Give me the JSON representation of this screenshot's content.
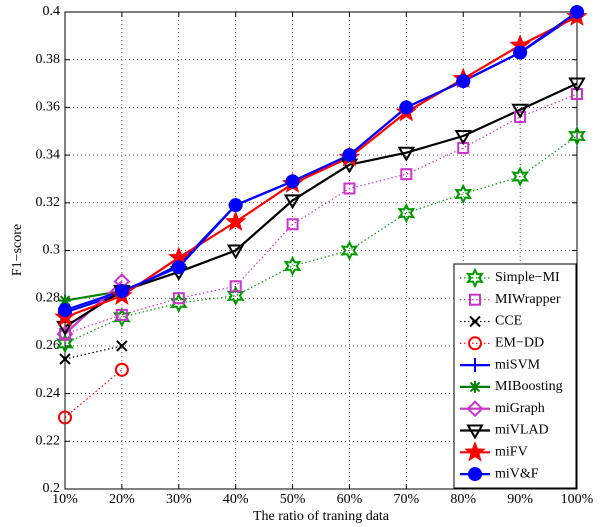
{
  "chart_data": {
    "type": "line",
    "x_label": "The ratio of traning data",
    "y_label": "F1−score",
    "categories": [
      "10%",
      "20%",
      "30%",
      "40%",
      "50%",
      "60%",
      "70%",
      "80%",
      "90%",
      "100%"
    ],
    "ylim": [
      0.2,
      0.4
    ],
    "yticks": [
      0.2,
      0.22,
      0.24,
      0.26,
      0.28,
      0.3,
      0.32,
      0.34,
      0.36,
      0.38,
      0.4
    ],
    "grid": true,
    "legend": "lower right",
    "series": [
      {
        "name": "Simple−MI",
        "color": "#009900",
        "marker": "hexagram",
        "line_style": "dotted",
        "filled": false,
        "values": [
          0.261,
          0.272,
          0.278,
          0.281,
          0.2935,
          0.3,
          0.3157,
          0.3237,
          0.331,
          0.348
        ]
      },
      {
        "name": "MIWrapper",
        "color": "#cc33cc",
        "marker": "square",
        "line_style": "dotted",
        "filled": false,
        "values": [
          0.265,
          0.273,
          0.28,
          0.285,
          0.311,
          0.326,
          0.332,
          0.343,
          0.356,
          0.3656
        ]
      },
      {
        "name": "CCE",
        "color": "#000000",
        "marker": "x",
        "line_style": "dotted",
        "filled": false,
        "values": [
          0.2545,
          0.26,
          null,
          null,
          null,
          null,
          null,
          null,
          null,
          null
        ]
      },
      {
        "name": "EM−DD",
        "color": "#ff0000",
        "marker": "circle",
        "line_style": "dotted",
        "filled": false,
        "values": [
          0.23,
          0.25,
          null,
          null,
          null,
          null,
          null,
          null,
          null,
          null
        ]
      },
      {
        "name": "miSVM",
        "color": "#0000ff",
        "marker": "plus",
        "line_style": "solid",
        "filled": false,
        "values": [
          0.274,
          0.282,
          0.294,
          0.319,
          0.329,
          0.34,
          0.36,
          0.371,
          0.383,
          0.399
        ]
      },
      {
        "name": "MIBoosting",
        "color": "#008000",
        "marker": "asterisk",
        "line_style": "solid",
        "filled": false,
        "values": [
          0.279,
          0.283,
          null,
          null,
          null,
          null,
          null,
          null,
          null,
          null
        ]
      },
      {
        "name": "miGraph",
        "color": "#cc33cc",
        "marker": "diamond",
        "line_style": "solid",
        "filled": false,
        "values": [
          0.265,
          0.287,
          null,
          null,
          null,
          null,
          null,
          null,
          null,
          null
        ]
      },
      {
        "name": "miVLAD",
        "color": "#000000",
        "marker": "triangle-down",
        "line_style": "solid",
        "filled": false,
        "values": [
          0.268,
          0.283,
          0.291,
          0.3,
          0.321,
          0.336,
          0.341,
          0.348,
          0.359,
          0.37
        ]
      },
      {
        "name": "miFV",
        "color": "#ff0000",
        "marker": "pentagram",
        "line_style": "solid",
        "filled": true,
        "values": [
          0.272,
          0.281,
          0.297,
          0.312,
          0.328,
          0.339,
          0.358,
          0.372,
          0.386,
          0.398
        ]
      },
      {
        "name": "miV&F",
        "color": "#0000ff",
        "marker": "circle",
        "line_style": "solid",
        "filled": true,
        "values": [
          0.275,
          0.283,
          0.293,
          0.319,
          0.329,
          0.34,
          0.36,
          0.371,
          0.383,
          0.4
        ]
      }
    ]
  }
}
